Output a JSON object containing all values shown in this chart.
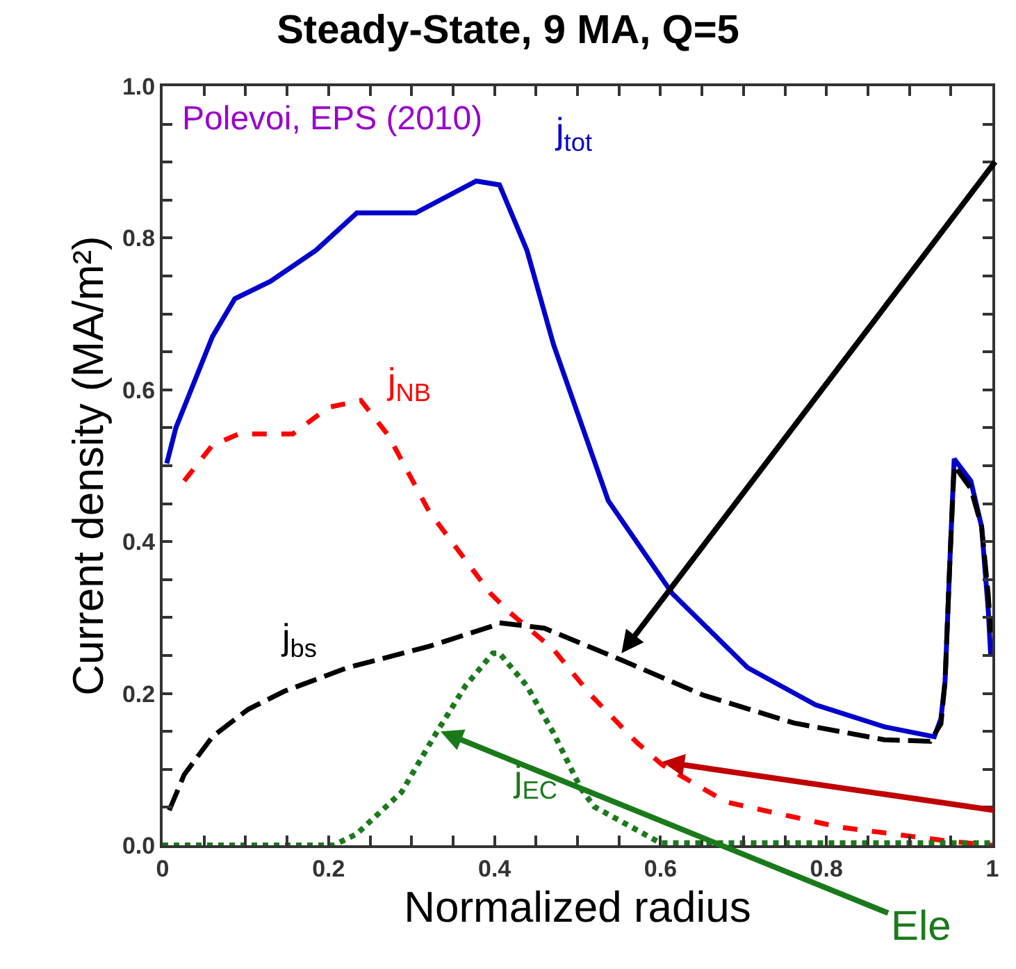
{
  "chart_data": {
    "type": "line",
    "title": "Steady-State, 9 MA, Q=5",
    "xlabel": "Normalized radius",
    "ylabel": "Current density (MA/m²)",
    "annotations": [
      "Polevoi, EPS (2010)",
      {
        "text": "Ele",
        "x": 0.335,
        "y": 0.15
      }
    ],
    "series": [
      {
        "name": "j$_{tot}$",
        "color": "#0000cc",
        "line_style": "solid",
        "x": [
          0.005,
          0.016,
          0.06,
          0.087,
          0.13,
          0.185,
          0.234,
          0.305,
          0.378,
          0.406,
          0.439,
          0.471,
          0.537,
          0.614,
          0.705,
          0.787,
          0.87,
          0.93,
          0.938,
          0.943,
          0.949,
          0.954,
          0.974,
          0.987,
          0.995,
          0.998
        ],
        "values": [
          0.503,
          0.55,
          0.67,
          0.72,
          0.743,
          0.784,
          0.833,
          0.833,
          0.875,
          0.87,
          0.784,
          0.66,
          0.454,
          0.332,
          0.234,
          0.185,
          0.156,
          0.143,
          0.167,
          0.216,
          0.38,
          0.509,
          0.48,
          0.42,
          0.31,
          0.25
        ]
      },
      {
        "name": "j$_{NB}$",
        "color": "#ff0000",
        "line_style": "dashed",
        "x": [
          0.026,
          0.06,
          0.092,
          0.157,
          0.2,
          0.239,
          0.272,
          0.321,
          0.395,
          0.417,
          0.471,
          0.516,
          0.57,
          0.602,
          0.679,
          0.815,
          0.951,
          1.0
        ],
        "values": [
          0.48,
          0.527,
          0.542,
          0.542,
          0.577,
          0.586,
          0.54,
          0.44,
          0.332,
          0.308,
          0.258,
          0.198,
          0.137,
          0.106,
          0.057,
          0.024,
          0.005,
          0.0
        ]
      },
      {
        "name": "j$_{bs}$",
        "color": "#000000",
        "line_style": "dashed",
        "x": [
          0.008,
          0.026,
          0.06,
          0.103,
          0.147,
          0.223,
          0.321,
          0.398,
          0.406,
          0.46,
          0.553,
          0.651,
          0.761,
          0.87,
          0.925,
          0.938,
          0.943,
          0.949,
          0.954,
          0.974,
          0.987,
          0.995,
          0.998
        ],
        "values": [
          0.046,
          0.093,
          0.143,
          0.179,
          0.203,
          0.234,
          0.262,
          0.289,
          0.293,
          0.286,
          0.244,
          0.198,
          0.161,
          0.139,
          0.137,
          0.16,
          0.216,
          0.38,
          0.5,
          0.47,
          0.42,
          0.33,
          0.28
        ]
      },
      {
        "name": "j$_{EC}$",
        "color": "#1a7a1a",
        "line_style": "dotted",
        "x": [
          0.0,
          0.206,
          0.234,
          0.288,
          0.327,
          0.365,
          0.398,
          0.406,
          0.439,
          0.471,
          0.504,
          0.52,
          0.6,
          1.0
        ],
        "values": [
          0.0,
          0.0,
          0.015,
          0.07,
          0.143,
          0.21,
          0.253,
          0.253,
          0.21,
          0.148,
          0.075,
          0.051,
          0.003,
          0.003
        ]
      }
    ],
    "xlim": [
      0,
      1
    ],
    "ylim": [
      0,
      1
    ],
    "xticks": [
      0,
      {
        "value": 0.05,
        "label": null
      },
      {
        "value": 0.1,
        "label": null
      },
      {
        "value": 0.15,
        "label": null
      },
      0.2,
      {
        "value": 0.25,
        "label": null
      },
      {
        "value": 0.3,
        "label": null
      },
      {
        "value": 0.35,
        "label": null
      },
      0.4,
      {
        "value": 0.45,
        "label": null
      },
      {
        "value": 0.5,
        "label": null
      },
      {
        "value": 0.55,
        "label": null
      },
      0.6,
      {
        "value": 0.65,
        "label": null
      },
      {
        "value": 0.7,
        "label": null
      },
      {
        "value": 0.75,
        "label": null
      },
      0.8,
      {
        "value": 0.85,
        "label": null
      },
      {
        "value": 0.9,
        "label": null
      },
      {
        "value": 0.95,
        "label": null
      },
      1
    ],
    "yticks": [
      {
        "value": 0,
        "label": "0.0"
      },
      {
        "value": 0.05,
        "label": null
      },
      {
        "value": 0.1,
        "label": null
      },
      {
        "value": 0.15,
        "label": null
      },
      {
        "value": 0.2,
        "label": "0.2"
      },
      {
        "value": 0.25,
        "label": null
      },
      {
        "value": 0.3,
        "label": null
      },
      {
        "value": 0.35,
        "label": null
      },
      {
        "value": 0.4,
        "label": "0.4"
      },
      {
        "value": 0.45,
        "label": null
      },
      {
        "value": 0.5,
        "label": null
      },
      {
        "value": 0.55,
        "label": null
      },
      {
        "value": 0.6,
        "label": "0.6"
      },
      {
        "value": 0.65,
        "label": null
      },
      {
        "value": 0.7,
        "label": null
      },
      {
        "value": 0.75,
        "label": null
      },
      {
        "value": 0.8,
        "label": "0.8"
      },
      {
        "value": 0.85,
        "label": null
      },
      {
        "value": 0.9,
        "label": null
      },
      {
        "value": 0.95,
        "label": null
      },
      {
        "value": 1,
        "label": "1.0"
      }
    ],
    "legend": false,
    "marker": "none"
  }
}
